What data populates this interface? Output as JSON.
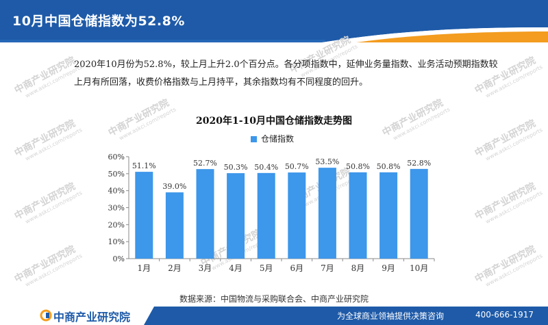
{
  "header": {
    "title": "10月中国仓储指数为52.8%"
  },
  "intro": {
    "text": "2020年10月份为52.8%，较上月上升2.0个百分点。各分项指数中，延伸业务量指数、业务活动预期指数较上月有所回落，收费价格指数与上月持平，其余指数均有不同程度的回升。"
  },
  "watermark": {
    "text": "中商产业研究院",
    "url": "www.askci.com/reports"
  },
  "chart_data": {
    "type": "bar",
    "title": "2020年1-10月中国仓储指数走势图",
    "categories": [
      "1月",
      "2月",
      "3月",
      "4月",
      "5月",
      "6月",
      "7月",
      "8月",
      "9月",
      "10月"
    ],
    "series": [
      {
        "name": "仓储指数",
        "values": [
          51.1,
          39.0,
          52.7,
          50.3,
          50.4,
          50.7,
          53.5,
          50.8,
          50.8,
          52.8
        ]
      }
    ],
    "data_labels": [
      "51.1%",
      "39.0%",
      "52.7%",
      "50.3%",
      "50.4%",
      "50.7%",
      "53.5%",
      "50.8%",
      "50.8%",
      "52.8%"
    ],
    "ylim": [
      0,
      60
    ],
    "yticks": [
      "0%",
      "10%",
      "20%",
      "30%",
      "40%",
      "50%",
      "60%"
    ],
    "ytick_values": [
      0,
      10,
      20,
      30,
      40,
      50,
      60
    ],
    "grid": false,
    "legend_position": "top",
    "bar_color": "#3d97ea"
  },
  "source": {
    "text": "数据来源：中国物流与采购联合会、中商产业研究院"
  },
  "footer": {
    "logo": "中商产业研究院",
    "slogan": "为全球商业领袖提供决策咨询",
    "phone": "400-666-1917"
  },
  "colors": {
    "header_blue": "#1e5aa8",
    "accent_orange": "#f39c1f",
    "bar": "#3d97ea"
  }
}
